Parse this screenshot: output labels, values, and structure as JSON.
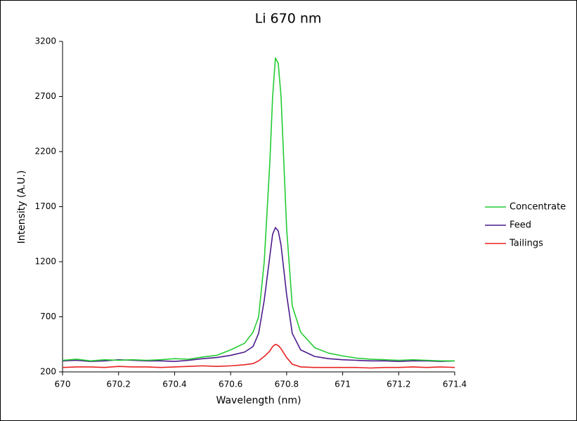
{
  "chart_data": {
    "type": "line",
    "title": "Li 670 nm",
    "x_label": "Wavelength (nm)",
    "y_label": "Intensity (A.U.)",
    "x": [
      670,
      670.05,
      670.1,
      670.15,
      670.2,
      670.25,
      670.3,
      670.35,
      670.4,
      670.45,
      670.5,
      670.55,
      670.6,
      670.65,
      670.68,
      670.7,
      670.72,
      670.74,
      670.75,
      670.76,
      670.77,
      670.78,
      670.8,
      670.82,
      670.85,
      670.9,
      670.95,
      671,
      671.05,
      671.1,
      671.15,
      671.2,
      671.25,
      671.3,
      671.35,
      671.4
    ],
    "series": [
      {
        "name": "Concentrate",
        "color": "#22cc33",
        "values": [
          305,
          315,
          300,
          310,
          305,
          310,
          305,
          310,
          320,
          315,
          335,
          350,
          400,
          460,
          560,
          700,
          1200,
          2100,
          2700,
          3050,
          3000,
          2700,
          1500,
          800,
          560,
          420,
          370,
          345,
          325,
          315,
          310,
          305,
          310,
          305,
          300,
          300
        ]
      },
      {
        "name": "Feed",
        "color": "#4b1a8c",
        "values": [
          300,
          305,
          295,
          300,
          310,
          305,
          300,
          300,
          295,
          305,
          320,
          330,
          350,
          380,
          430,
          550,
          850,
          1250,
          1450,
          1510,
          1480,
          1350,
          900,
          550,
          400,
          340,
          320,
          310,
          305,
          300,
          300,
          295,
          300,
          300,
          295,
          300
        ]
      },
      {
        "name": "Tailings",
        "color": "#e82020",
        "values": [
          240,
          245,
          245,
          240,
          250,
          245,
          245,
          240,
          245,
          250,
          255,
          250,
          255,
          265,
          275,
          300,
          340,
          390,
          430,
          450,
          440,
          410,
          330,
          270,
          245,
          240,
          240,
          240,
          240,
          235,
          240,
          240,
          245,
          240,
          245,
          240
        ]
      }
    ],
    "xlim": [
      670,
      671.4
    ],
    "xticks": [
      670,
      670.2,
      670.4,
      670.6,
      670.8,
      671,
      671.2,
      671.4
    ],
    "ylim": [
      200,
      3200
    ],
    "yticks": [
      200,
      700,
      1200,
      1700,
      2200,
      2700,
      3200
    ],
    "legend": "right"
  }
}
